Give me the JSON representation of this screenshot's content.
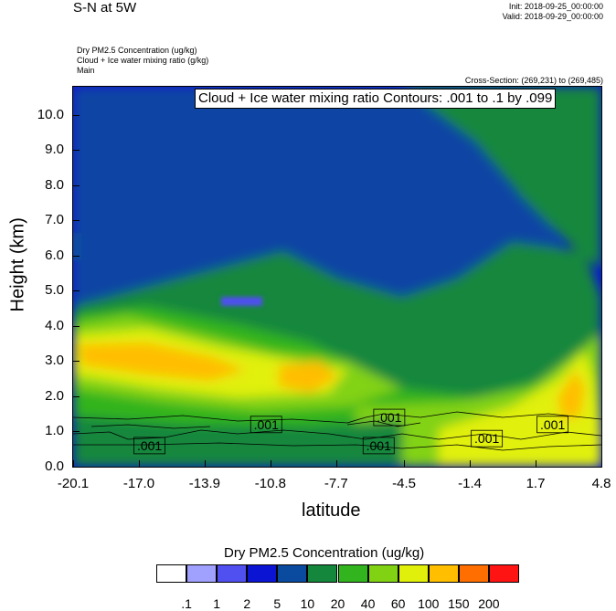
{
  "header": {
    "title": "S-N at 5W",
    "init": "Init: 2018-09-25_00:00:00",
    "valid": "Valid: 2018-09-29_00:00:00",
    "field1": "Dry PM2.5 Concentration   (ug/kg)",
    "field2": "Cloud + Ice water mixing ratio   (g/kg)",
    "domain": "Main",
    "cross_section": "Cross-Section: (269,231) to (269,485)"
  },
  "chart_data": {
    "type": "heatmap",
    "title": "S-N at 5W",
    "xlabel": "latitude",
    "ylabel": "Height (km)",
    "xlim": [
      -20.1,
      4.8
    ],
    "ylim": [
      0.0,
      10.8
    ],
    "x_ticks": [
      "-20.1",
      "-17.0",
      "-13.9",
      "-10.8",
      "-7.7",
      "-4.5",
      "-1.4",
      "1.7",
      "4.8"
    ],
    "x_tick_values": [
      -20.1,
      -17.0,
      -13.9,
      -10.8,
      -7.7,
      -4.5,
      -1.4,
      1.7,
      4.8
    ],
    "y_ticks": [
      "0.0",
      "1.0",
      "2.0",
      "3.0",
      "4.0",
      "5.0",
      "6.0",
      "7.0",
      "8.0",
      "9.0",
      "10.0"
    ],
    "y_tick_values": [
      0,
      1,
      2,
      3,
      4,
      5,
      6,
      7,
      8,
      9,
      10
    ],
    "contour_title": "Cloud + Ice water mixing ratio Contours: .001 to .1 by .099",
    "contour_labels": [
      {
        "text": ".001",
        "x": -16.5,
        "y": 0.6
      },
      {
        "text": ".001",
        "x": -11.0,
        "y": 1.2
      },
      {
        "text": ".001",
        "x": -5.2,
        "y": 1.4
      },
      {
        "text": ".001",
        "x": -5.7,
        "y": 0.6
      },
      {
        "text": ".001",
        "x": -0.6,
        "y": 0.8
      },
      {
        "text": ".001",
        "x": 2.5,
        "y": 1.2
      }
    ],
    "colorbar": {
      "title": "Dry PM2.5 Concentration  (ug/kg)",
      "labels": [
        ".1",
        "1",
        "2",
        "5",
        "10",
        "20",
        "40",
        "60",
        "100",
        "150",
        "200"
      ],
      "colors": [
        "#ffffff",
        "#a0a0ff",
        "#5050f0",
        "#0a14d2",
        "#0a4ba0",
        "#14873c",
        "#32b41e",
        "#82d214",
        "#e1f00a",
        "#ffbe00",
        "#ff6e00",
        "#ff1414"
      ]
    }
  }
}
